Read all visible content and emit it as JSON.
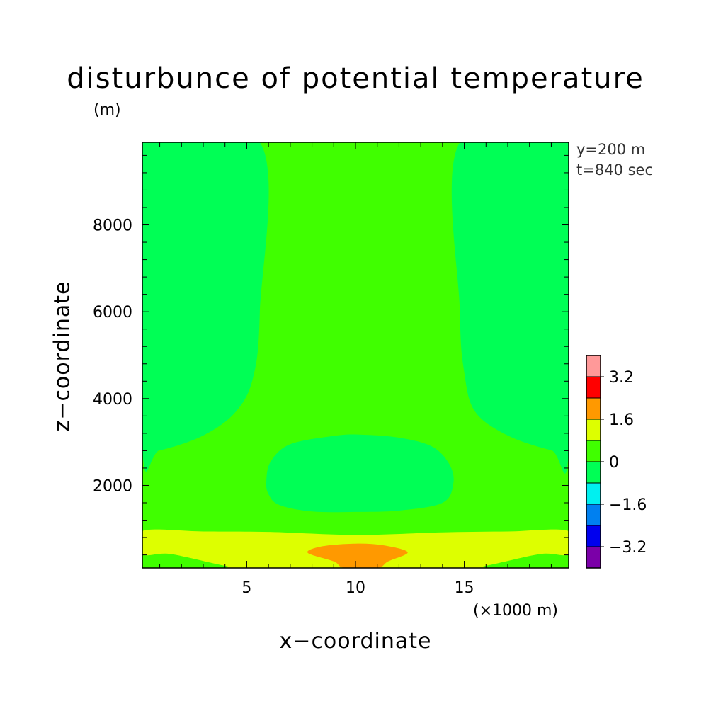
{
  "chart_data": {
    "type": "heatmap",
    "title": "disturbunce of potential temperature",
    "title_unit": "(m)",
    "info": [
      "y=200 m",
      "t=840 sec"
    ],
    "xlabel": "x−coordinate",
    "xunit": "(×1000 m)",
    "ylabel": "z−coordinate",
    "xlim": [
      0.2,
      19.8
    ],
    "ylim": [
      100,
      9900
    ],
    "xticks": [
      5,
      10,
      15
    ],
    "xtick_labels": [
      "5",
      "10",
      "15"
    ],
    "yticks": [
      2000,
      4000,
      6000,
      8000
    ],
    "ytick_labels": [
      "2000",
      "4000",
      "6000",
      "8000"
    ],
    "colorbar": {
      "boundaries": [
        -4.0,
        -3.2,
        -2.4,
        -1.6,
        -0.8,
        0,
        0.8,
        1.6,
        2.4,
        3.2,
        4.0
      ],
      "colors": [
        "#7B00A8",
        "#0000EE",
        "#0080F0",
        "#00F0F0",
        "#00FF55",
        "#40FF00",
        "#DDFF00",
        "#FF9900",
        "#FF0000",
        "#FF9999"
      ],
      "labels": [
        "−3.2",
        "−1.6",
        "0",
        "1.6",
        "3.2"
      ],
      "label_values": [
        -3.2,
        -1.6,
        0,
        1.6,
        3.2
      ]
    },
    "background_level": "0 to 0.8",
    "contour_regions": [
      {
        "name": "left-upper-negative",
        "level": "-0.8 to 0",
        "color": "#00FF55",
        "points": [
          [
            0.2,
            9900
          ],
          [
            5.6,
            9900
          ],
          [
            5.6,
            6000
          ],
          [
            5.3,
            4500
          ],
          [
            4.5,
            3700
          ],
          [
            3.0,
            3150
          ],
          [
            1.0,
            2810
          ],
          [
            0.2,
            2870
          ]
        ]
      },
      {
        "name": "right-upper-negative",
        "level": "-0.8 to 0",
        "color": "#00FF55",
        "points": [
          [
            14.8,
            9900
          ],
          [
            19.8,
            9900
          ],
          [
            19.8,
            2810
          ],
          [
            19.0,
            2810
          ],
          [
            17.0,
            3150
          ],
          [
            15.5,
            3700
          ],
          [
            15.0,
            4600
          ],
          [
            14.8,
            6000
          ]
        ]
      },
      {
        "name": "center-negative-blob",
        "level": "-0.8 to 0",
        "color": "#00FF55",
        "points": [
          [
            5.9,
            2100
          ],
          [
            6.1,
            2550
          ],
          [
            7.0,
            2950
          ],
          [
            9.0,
            3140
          ],
          [
            10.2,
            3170
          ],
          [
            12.0,
            3100
          ],
          [
            13.5,
            2900
          ],
          [
            14.3,
            2500
          ],
          [
            14.5,
            2050
          ],
          [
            14.0,
            1600
          ],
          [
            12.0,
            1420
          ],
          [
            10.0,
            1390
          ],
          [
            8.0,
            1400
          ],
          [
            6.5,
            1550
          ],
          [
            6.0,
            1800
          ]
        ]
      },
      {
        "name": "lower-positive-band",
        "level": "0.8 to 1.6",
        "color": "#DDFF00",
        "points": [
          [
            0.2,
            950
          ],
          [
            3.0,
            940
          ],
          [
            6.0,
            930
          ],
          [
            10.0,
            860
          ],
          [
            14.0,
            920
          ],
          [
            17.0,
            940
          ],
          [
            19.8,
            950
          ],
          [
            19.8,
            420
          ],
          [
            18.5,
            420
          ],
          [
            16.0,
            150
          ],
          [
            15.0,
            100
          ],
          [
            5.0,
            100
          ],
          [
            4.0,
            150
          ],
          [
            1.5,
            420
          ],
          [
            0.2,
            420
          ]
        ]
      },
      {
        "name": "bottom-warm-core",
        "level": "1.6 to 2.4",
        "color": "#FF9900",
        "points": [
          [
            7.8,
            450
          ],
          [
            8.5,
            600
          ],
          [
            10.0,
            660
          ],
          [
            11.3,
            620
          ],
          [
            12.4,
            460
          ],
          [
            11.5,
            250
          ],
          [
            11.0,
            100
          ],
          [
            9.5,
            100
          ],
          [
            9.0,
            250
          ]
        ]
      }
    ]
  }
}
